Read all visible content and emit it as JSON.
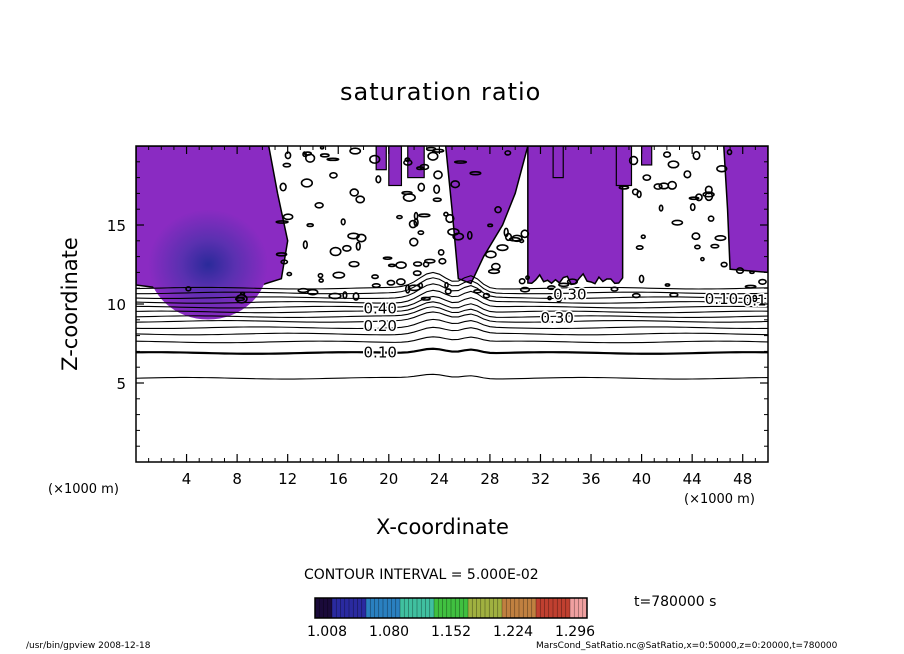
{
  "chart_data": {
    "type": "contour",
    "title": "saturation ratio",
    "xlabel": "X-coordinate",
    "ylabel": "Z-coordinate",
    "x_unit": "(×1000 m)",
    "y_unit": "(×1000 m)",
    "xlim": [
      0,
      50
    ],
    "ylim": [
      0,
      20
    ],
    "x_ticks": [
      4,
      8,
      12,
      16,
      20,
      24,
      28,
      32,
      36,
      40,
      44,
      48
    ],
    "y_ticks": [
      5,
      10,
      15
    ],
    "contour_interval_label": "CONTOUR INTERVAL = 5.000E-02",
    "time_label": "t=780000 s",
    "colorbar": {
      "ticks": [
        "1.008",
        "1.080",
        "1.152",
        "1.224",
        "1.296"
      ],
      "colors": [
        "#1a0a3a",
        "#2a2aa0",
        "#2a80c0",
        "#40c0a0",
        "#40c040",
        "#a0b040",
        "#c08040",
        "#c04030",
        "#f0a0a0"
      ]
    },
    "fill_color": "#8a2bc2",
    "contour_labels": [
      {
        "text": "0.10",
        "x": 18,
        "y": 6.6
      },
      {
        "text": "0.20",
        "x": 18,
        "y": 8.3
      },
      {
        "text": "0.30",
        "x": 32,
        "y": 8.8
      },
      {
        "text": "0.40",
        "x": 18,
        "y": 9.4
      },
      {
        "text": "0.30",
        "x": 33,
        "y": 10.3
      },
      {
        "text": "0.10",
        "x": 45,
        "y": 10.0
      },
      {
        "text": "0.10",
        "x": 48,
        "y": 9.9
      }
    ],
    "purple_regions": [
      {
        "x": [
          0,
          13
        ],
        "z": [
          11,
          20
        ]
      },
      {
        "x": [
          26,
          31
        ],
        "z": [
          11,
          20
        ]
      },
      {
        "x": [
          31,
          39
        ],
        "z": [
          11,
          20
        ]
      },
      {
        "x": [
          47,
          50
        ],
        "z": [
          12,
          20
        ]
      }
    ],
    "blue_core": {
      "x": 5.7,
      "z": 12.5
    },
    "contour_levels_z": [
      5.3,
      6.9,
      7.6,
      8.1,
      8.5,
      8.9,
      9.2,
      9.5,
      9.8,
      10.1,
      10.4,
      10.7,
      11.0
    ]
  },
  "footer": {
    "left": "/usr/bin/gpview   2008-12-18",
    "right": "MarsCond_SatRatio.nc@SatRatio,x=0:50000,z=0:20000,t=780000"
  }
}
